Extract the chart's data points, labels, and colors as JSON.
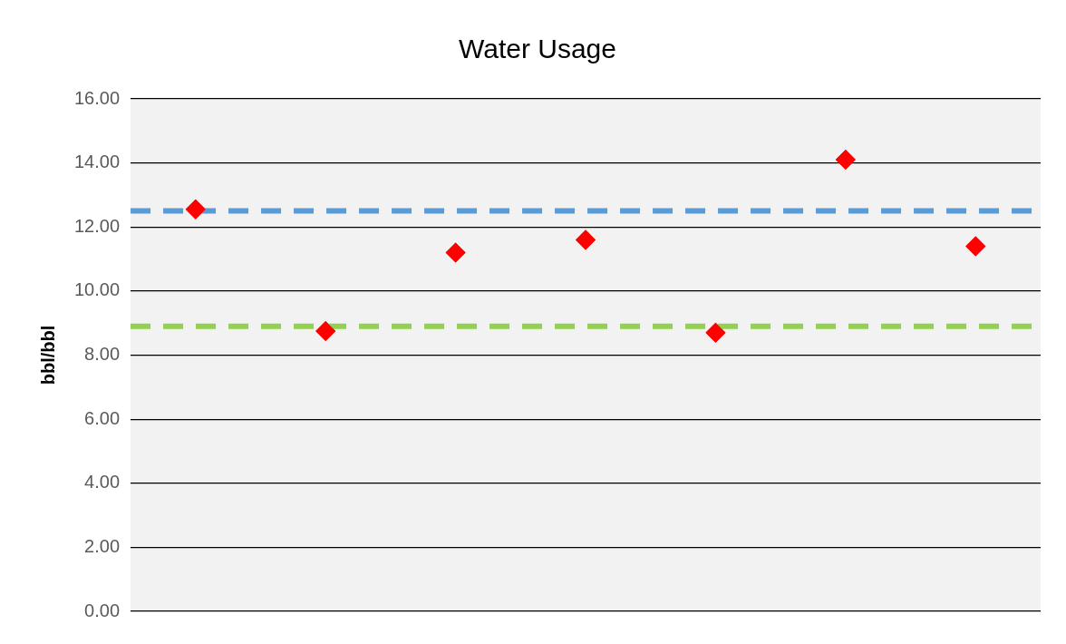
{
  "chart_data": {
    "type": "scatter",
    "title": "Water Usage",
    "ylabel": "bbl/bbl",
    "categories": [
      null,
      null,
      null,
      null,
      null,
      null,
      null
    ],
    "series": [
      {
        "color": "#ff0000",
        "values": [
          12.55,
          8.75,
          11.2,
          11.6,
          8.7,
          14.1,
          11.4
        ]
      }
    ],
    "ylim": [
      0,
      16
    ],
    "yticks": [
      {
        "value": 0,
        "label": "0.00"
      },
      {
        "value": 2,
        "label": "2.00"
      },
      {
        "value": 4,
        "label": "4.00"
      },
      {
        "value": 6,
        "label": "6.00"
      },
      {
        "value": 8,
        "label": "8.00"
      },
      {
        "value": 10,
        "label": "10.00"
      },
      {
        "value": 12,
        "label": "12.00"
      },
      {
        "value": 14,
        "label": "14.00"
      },
      {
        "value": 16,
        "label": "16.00"
      }
    ],
    "ref_lines": [
      {
        "axis": "y",
        "value": 12.5,
        "color": "#5b9bd5",
        "line_style": "dashed"
      },
      {
        "axis": "y",
        "value": 8.9,
        "color": "#92d050",
        "line_style": "dashed"
      }
    ],
    "grid": "y",
    "marker": "diamond",
    "tick_labels": "y",
    "legend": false
  }
}
